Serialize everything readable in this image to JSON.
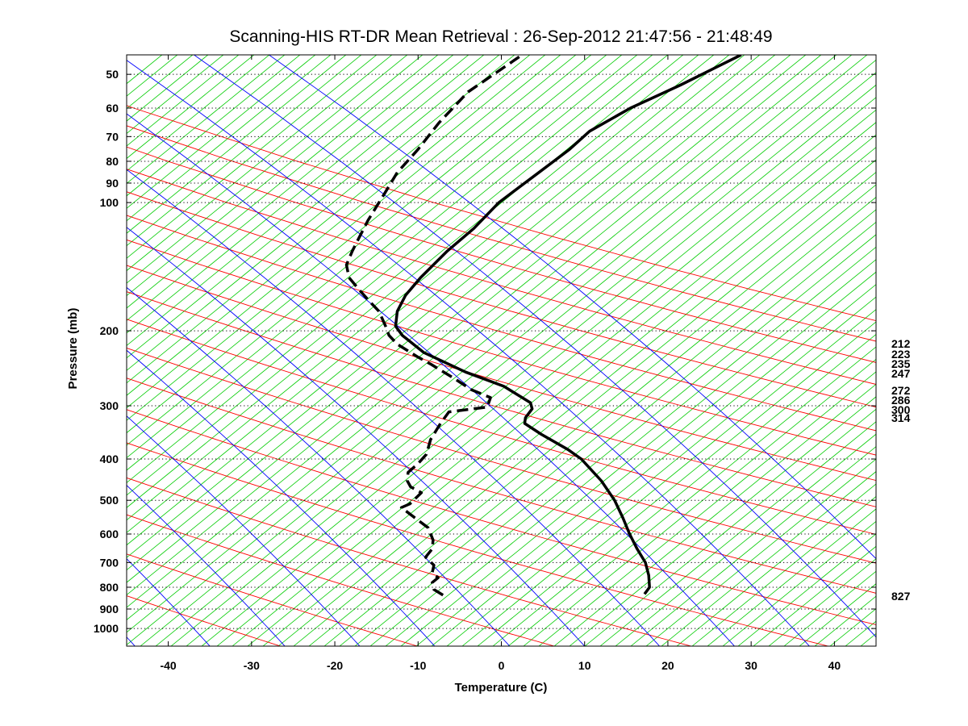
{
  "chart_data": {
    "type": "line",
    "chart_kind": "skew-T log-P thermodynamic diagram",
    "title": "Scanning-HIS RT-DR Mean Retrieval : 26-Sep-2012 21:47:56 - 21:48:49",
    "xlabel": "Temperature (C)",
    "ylabel": "Pressure (mb)",
    "xlim": [
      -45,
      45
    ],
    "ylim": [
      1100,
      45
    ],
    "y_scale": "log",
    "x_ticks": [
      -40,
      -30,
      -20,
      -10,
      0,
      10,
      20,
      30,
      40
    ],
    "y_ticks": [
      50,
      60,
      70,
      80,
      90,
      100,
      200,
      300,
      400,
      500,
      600,
      700,
      800,
      900,
      1000
    ],
    "grid": "horizontal dotted at pressure ticks",
    "background_lines": [
      {
        "name": "dry adiabats",
        "color": "#ff0000"
      },
      {
        "name": "moist adiabats",
        "color": "#0000ff"
      },
      {
        "name": "isotherms",
        "color": "#00cc00"
      }
    ],
    "right_labels": [
      "212",
      "223",
      "235",
      "247",
      "272",
      "286",
      "300",
      "314",
      "827"
    ],
    "series": [
      {
        "line_style": "solid",
        "color": "#000000",
        "points": [
          {
            "p": 830,
            "t": 17.2
          },
          {
            "p": 800,
            "t": 17.8
          },
          {
            "p": 750,
            "t": 17.7
          },
          {
            "p": 700,
            "t": 17.3
          },
          {
            "p": 650,
            "t": 16.3
          },
          {
            "p": 600,
            "t": 15.4
          },
          {
            "p": 550,
            "t": 14.6
          },
          {
            "p": 500,
            "t": 13.6
          },
          {
            "p": 450,
            "t": 12.0
          },
          {
            "p": 400,
            "t": 9.6
          },
          {
            "p": 380,
            "t": 8.0
          },
          {
            "p": 350,
            "t": 4.8
          },
          {
            "p": 330,
            "t": 2.8
          },
          {
            "p": 320,
            "t": 2.9
          },
          {
            "p": 305,
            "t": 3.7
          },
          {
            "p": 295,
            "t": 3.5
          },
          {
            "p": 270,
            "t": 0.3
          },
          {
            "p": 250,
            "t": -4.3
          },
          {
            "p": 225,
            "t": -9.3
          },
          {
            "p": 205,
            "t": -11.9
          },
          {
            "p": 195,
            "t": -12.7
          },
          {
            "p": 180,
            "t": -12.5
          },
          {
            "p": 165,
            "t": -11.5
          },
          {
            "p": 150,
            "t": -9.7
          },
          {
            "p": 130,
            "t": -6.5
          },
          {
            "p": 115,
            "t": -3.3
          },
          {
            "p": 100,
            "t": -0.3
          },
          {
            "p": 85,
            "t": 4.5
          },
          {
            "p": 75,
            "t": 8.2
          },
          {
            "p": 68,
            "t": 10.6
          },
          {
            "p": 60,
            "t": 15.5
          },
          {
            "p": 53,
            "t": 21.5
          },
          {
            "p": 45,
            "t": 28.8
          }
        ]
      },
      {
        "line_style": "dashed",
        "color": "#000000",
        "points": [
          {
            "p": 835,
            "t": -7.0
          },
          {
            "p": 810,
            "t": -8.1
          },
          {
            "p": 780,
            "t": -8.3
          },
          {
            "p": 760,
            "t": -7.6
          },
          {
            "p": 740,
            "t": -8.3
          },
          {
            "p": 710,
            "t": -8.1
          },
          {
            "p": 680,
            "t": -9.1
          },
          {
            "p": 650,
            "t": -8.3
          },
          {
            "p": 620,
            "t": -8.2
          },
          {
            "p": 580,
            "t": -8.8
          },
          {
            "p": 555,
            "t": -10.1
          },
          {
            "p": 520,
            "t": -12.0
          },
          {
            "p": 510,
            "t": -11.0
          },
          {
            "p": 480,
            "t": -9.6
          },
          {
            "p": 465,
            "t": -10.9
          },
          {
            "p": 450,
            "t": -11.3
          },
          {
            "p": 430,
            "t": -11.2
          },
          {
            "p": 410,
            "t": -10.0
          },
          {
            "p": 390,
            "t": -9.0
          },
          {
            "p": 360,
            "t": -8.5
          },
          {
            "p": 330,
            "t": -7.3
          },
          {
            "p": 310,
            "t": -6.3
          },
          {
            "p": 302,
            "t": -1.7
          },
          {
            "p": 287,
            "t": -1.3
          },
          {
            "p": 275,
            "t": -3.6
          },
          {
            "p": 260,
            "t": -5.5
          },
          {
            "p": 240,
            "t": -8.4
          },
          {
            "p": 230,
            "t": -10.1
          },
          {
            "p": 215,
            "t": -12.5
          },
          {
            "p": 205,
            "t": -13.5
          },
          {
            "p": 195,
            "t": -13.9
          },
          {
            "p": 180,
            "t": -14.7
          },
          {
            "p": 170,
            "t": -15.9
          },
          {
            "p": 160,
            "t": -17.1
          },
          {
            "p": 150,
            "t": -18.3
          },
          {
            "p": 140,
            "t": -18.6
          },
          {
            "p": 130,
            "t": -17.9
          },
          {
            "p": 120,
            "t": -17.0
          },
          {
            "p": 110,
            "t": -16.0
          },
          {
            "p": 95,
            "t": -14.0
          },
          {
            "p": 85,
            "t": -12.5
          },
          {
            "p": 75,
            "t": -10.0
          },
          {
            "p": 65,
            "t": -7.5
          },
          {
            "p": 55,
            "t": -4.0
          },
          {
            "p": 45,
            "t": 2.5
          }
        ]
      }
    ]
  }
}
